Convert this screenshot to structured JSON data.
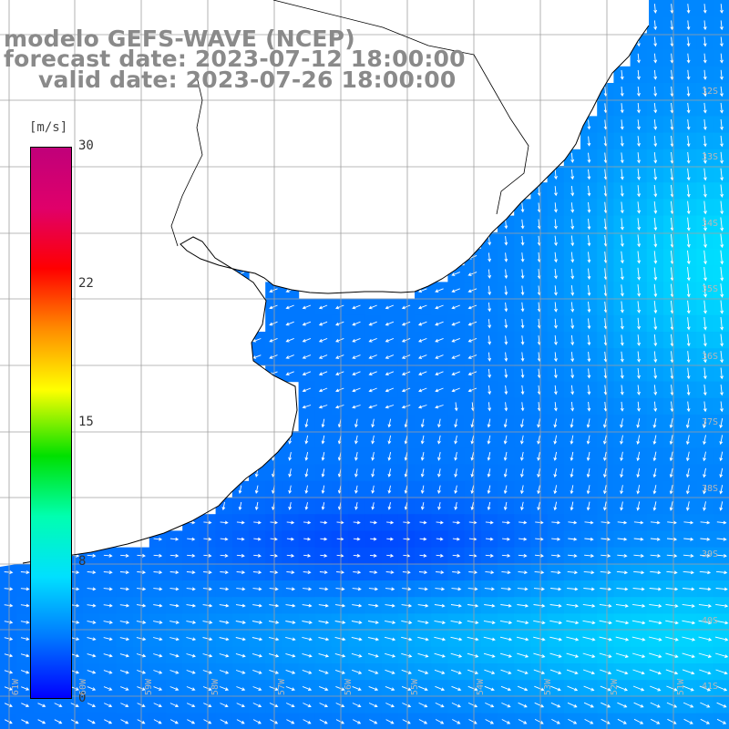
{
  "title": {
    "line1": "modelo GEFS-WAVE (NCEP)",
    "line2": "forecast date: 2023-07-12 18:00:00",
    "line3": "valid date: 2023-07-26 18:00:00"
  },
  "colorbar": {
    "unit": "[m/s]",
    "min": 0,
    "max": 30,
    "ticks": [
      "30",
      "22",
      "15",
      "8",
      "0"
    ],
    "tick_values": [
      30,
      22,
      15,
      8,
      0
    ],
    "colors": [
      "#0000ff",
      "#0078ff",
      "#00e0ff",
      "#00ffb0",
      "#00e000",
      "#ffff00",
      "#ff8c00",
      "#ff0000",
      "#e0006a",
      "#c0007a"
    ]
  },
  "map": {
    "land_color": "#ffffff",
    "coastline_color": "#000000",
    "grid_color": "#a0a0a0",
    "arrow_color": "#ffffff",
    "lat_labels": [
      "32S",
      "33S",
      "34S",
      "35S",
      "36S",
      "37S",
      "38S",
      "39S",
      "40S",
      "41S"
    ],
    "lon_labels": [
      "61W",
      "60W",
      "59W",
      "58W",
      "57W",
      "56W",
      "55W",
      "54W",
      "53W",
      "52W",
      "51W"
    ]
  }
}
